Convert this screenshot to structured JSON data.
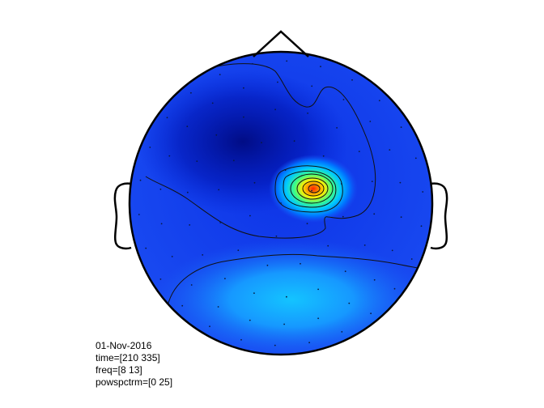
{
  "chart_data": {
    "type": "heatmap",
    "subtype": "eeg-topoplot",
    "colormap": "jet",
    "head_outline": {
      "nose": true,
      "ears": true
    },
    "background_level": 0.15,
    "hotspot": {
      "peak_level": 1.0,
      "location": "right-central"
    },
    "occipital_region_level": 0.35,
    "frontal_region_level": 0.12,
    "contour_lines": true,
    "electrode_markers": true
  },
  "info": {
    "date": "01-Nov-2016",
    "time": "time=[210 335]",
    "freq": "freq=[8 13]",
    "param": "powspctrm=[0 25]"
  }
}
